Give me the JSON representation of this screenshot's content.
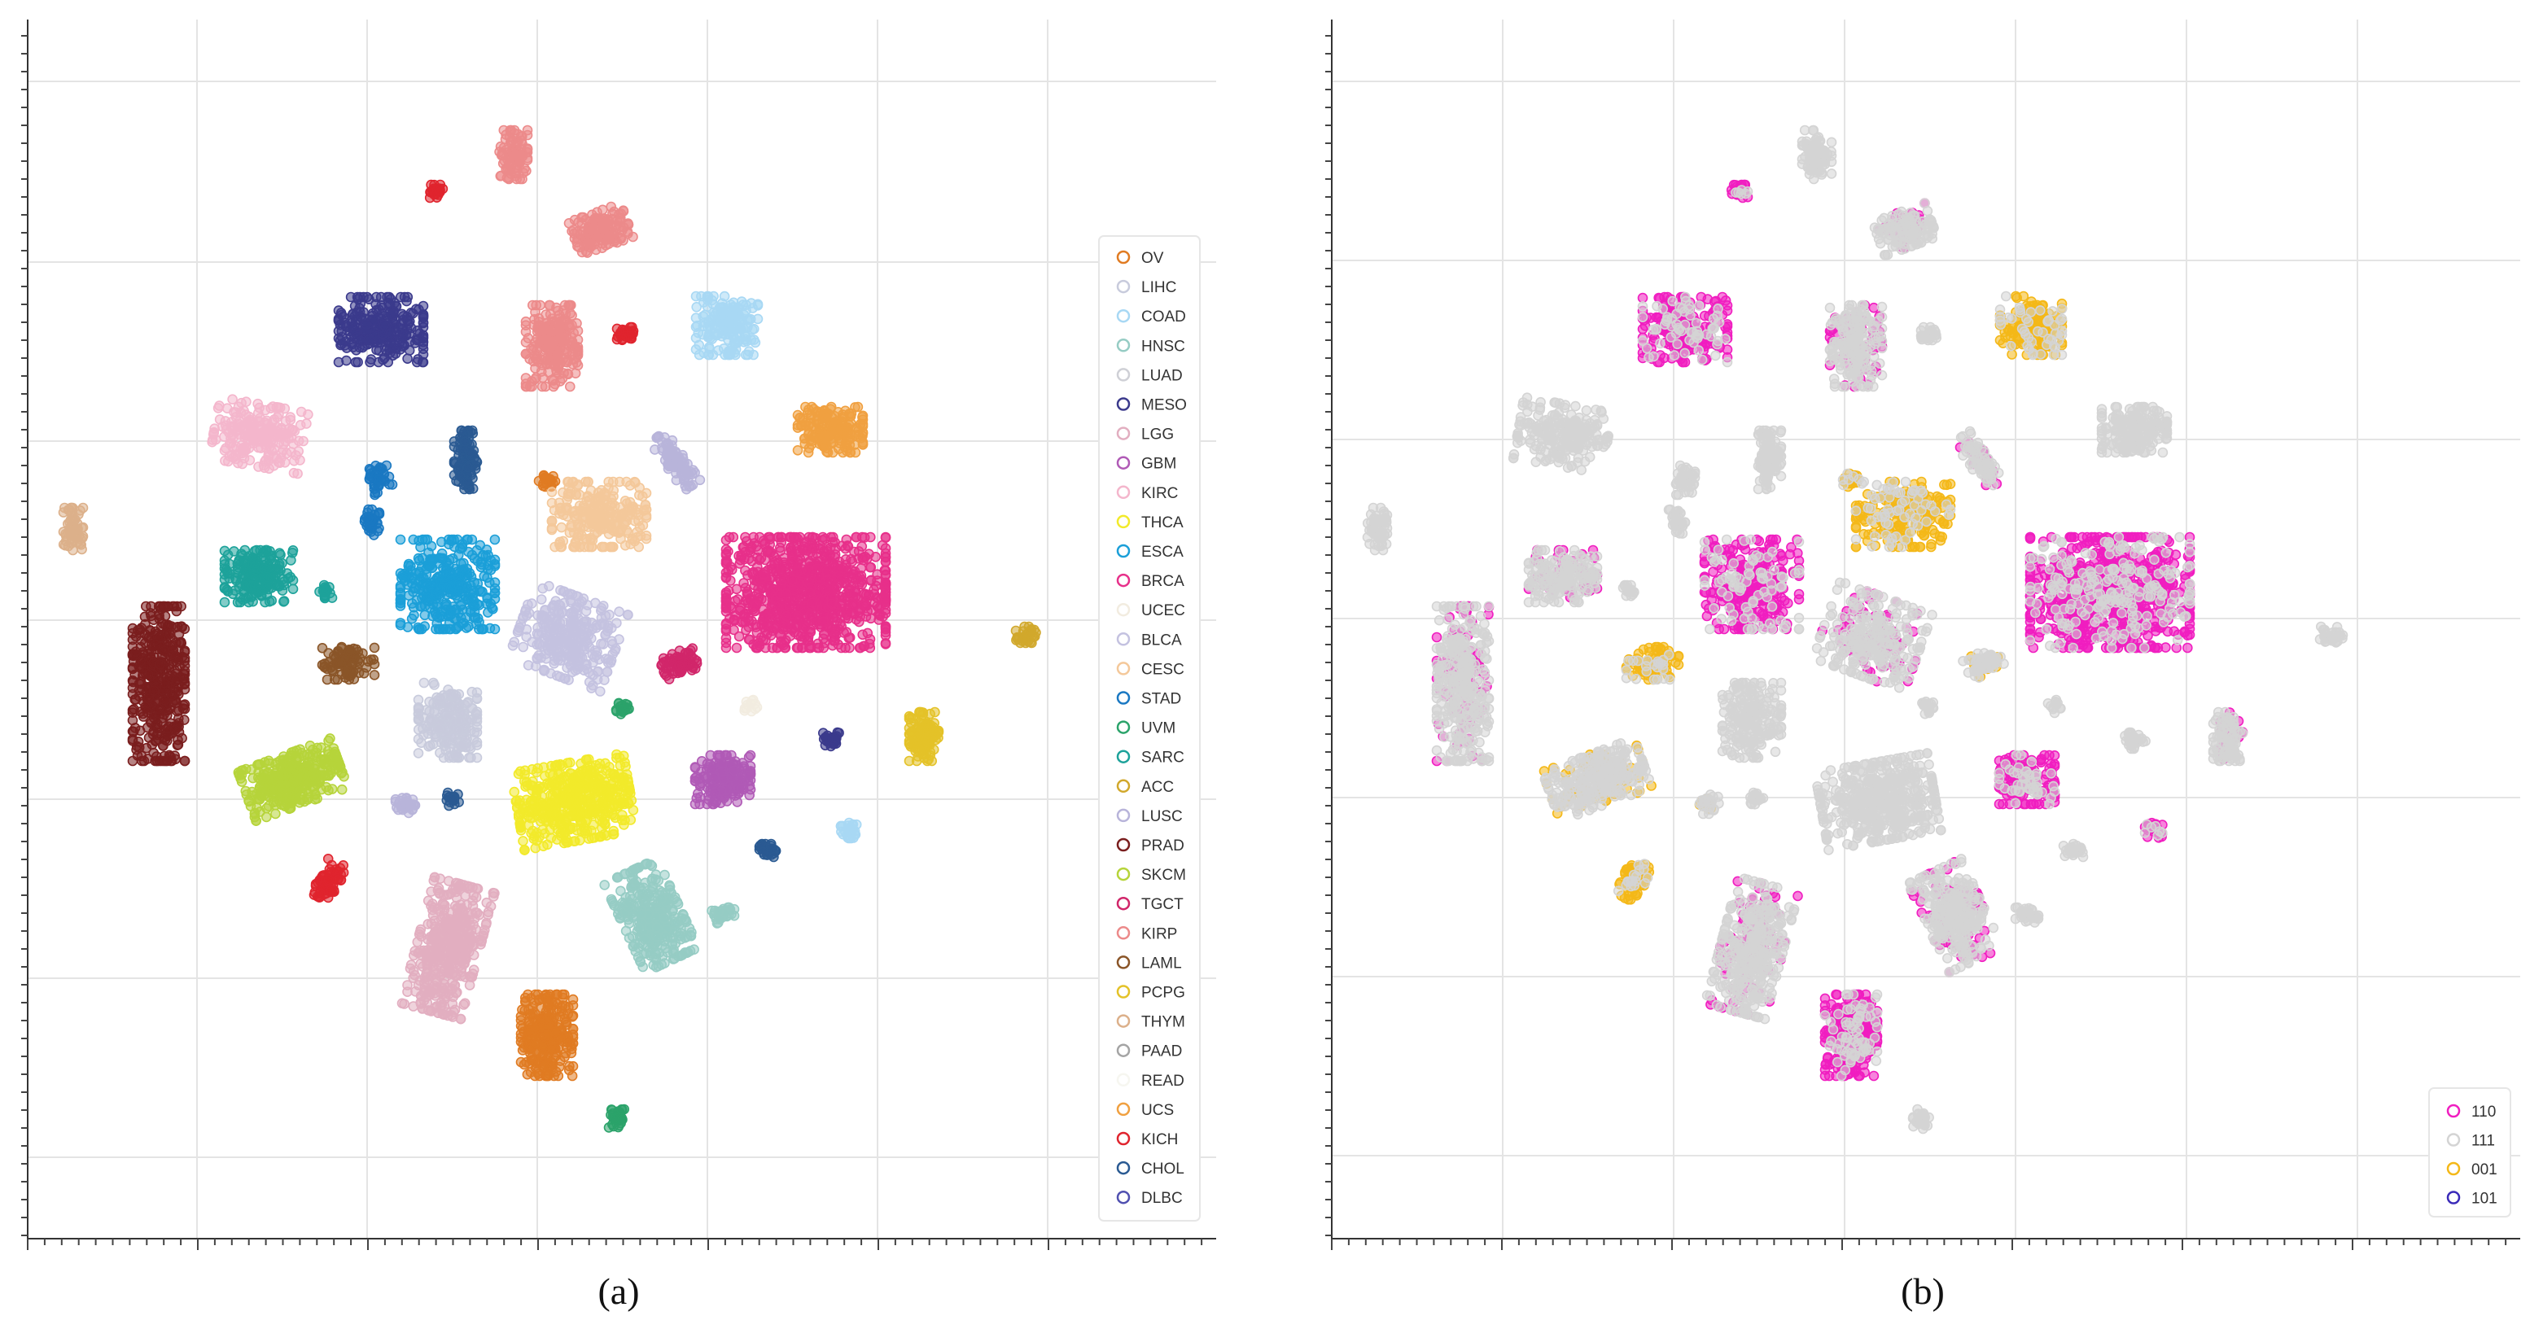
{
  "chart_data": [
    {
      "type": "scatter",
      "caption": "(a)",
      "title": "",
      "xlabel": "",
      "ylabel": "",
      "grid": true,
      "legend_placement": "right",
      "xlim": [
        0,
        100
      ],
      "ylim": [
        0,
        100
      ],
      "series": [
        {
          "name": "OV",
          "color": "#e07b22"
        },
        {
          "name": "LIHC",
          "color": "#c8cbdc"
        },
        {
          "name": "COAD",
          "color": "#a8d8f4"
        },
        {
          "name": "HNSC",
          "color": "#96ccc4"
        },
        {
          "name": "LUAD",
          "color": "#cfd0d6"
        },
        {
          "name": "MESO",
          "color": "#3b3a8c"
        },
        {
          "name": "LGG",
          "color": "#e2aec0"
        },
        {
          "name": "GBM",
          "color": "#b05ab6"
        },
        {
          "name": "KIRC",
          "color": "#f4b6cc"
        },
        {
          "name": "THCA",
          "color": "#f2ea2a"
        },
        {
          "name": "ESCA",
          "color": "#1b9fd8"
        },
        {
          "name": "BRCA",
          "color": "#e7308a"
        },
        {
          "name": "UCEC",
          "color": "#f2ece0"
        },
        {
          "name": "BLCA",
          "color": "#c4c2e0"
        },
        {
          "name": "CESC",
          "color": "#f4c89a"
        },
        {
          "name": "STAD",
          "color": "#1a78c2"
        },
        {
          "name": "UVM",
          "color": "#2ba36a"
        },
        {
          "name": "SARC",
          "color": "#1da29a"
        },
        {
          "name": "ACC",
          "color": "#d1a82c"
        },
        {
          "name": "LUSC",
          "color": "#b8b4da"
        },
        {
          "name": "PRAD",
          "color": "#7a1e1e"
        },
        {
          "name": "SKCM",
          "color": "#b6d43a"
        },
        {
          "name": "TGCT",
          "color": "#d1266a"
        },
        {
          "name": "KIRP",
          "color": "#ec8a8a"
        },
        {
          "name": "LAML",
          "color": "#8a5528"
        },
        {
          "name": "PCPG",
          "color": "#e4c228"
        },
        {
          "name": "THYM",
          "color": "#dcb08a"
        },
        {
          "name": "PAAD",
          "color": "#a4a4a4"
        },
        {
          "name": "READ",
          "color": "#f6f6f0"
        },
        {
          "name": "UCS",
          "color": "#f0a040"
        },
        {
          "name": "KICH",
          "color": "#e0242e"
        },
        {
          "name": "CHOL",
          "color": "#2a5a92"
        },
        {
          "name": "DLBC",
          "color": "#5050b0"
        }
      ]
    },
    {
      "type": "scatter",
      "caption": "(b)",
      "title": "",
      "xlabel": "",
      "ylabel": "",
      "grid": true,
      "legend_placement": "bottom-right",
      "xlim": [
        0,
        100
      ],
      "ylim": [
        0,
        100
      ],
      "series": [
        {
          "name": "110",
          "color": "#f01ec0"
        },
        {
          "name": "111",
          "color": "#d4d4d4"
        },
        {
          "name": "001",
          "color": "#f4b818"
        },
        {
          "name": "101",
          "color": "#3a2ab8"
        }
      ]
    }
  ]
}
